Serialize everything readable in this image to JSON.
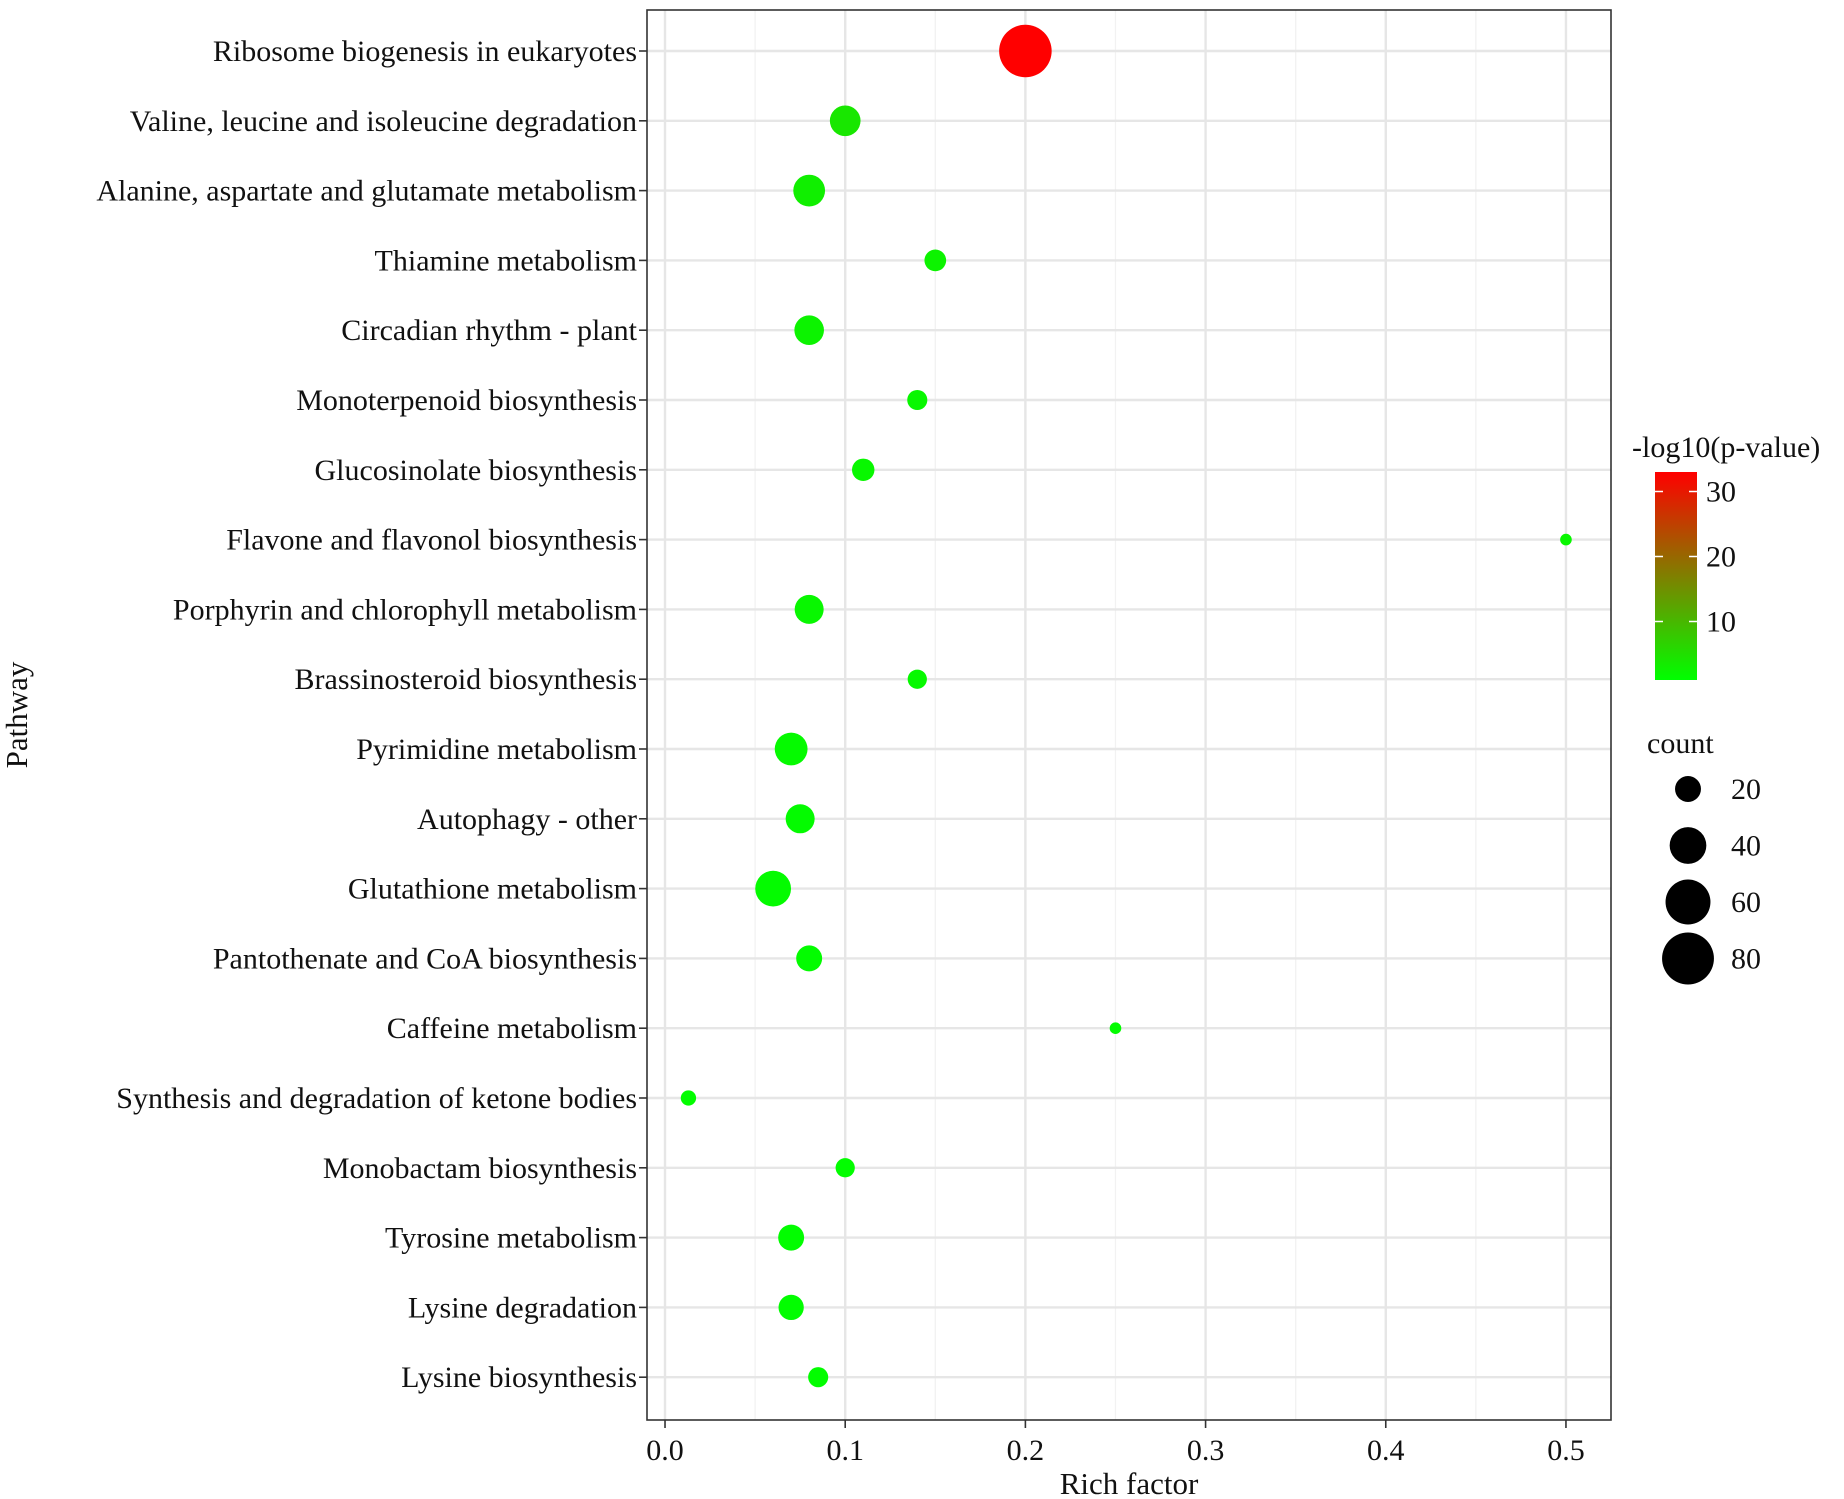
{
  "chart_data": {
    "type": "scatter",
    "xlabel": "Rich factor",
    "ylabel": "Pathway",
    "xlim": [
      -0.01,
      0.525
    ],
    "xticks": [
      "0.0",
      "0.1",
      "0.2",
      "0.3",
      "0.4",
      "0.5"
    ],
    "xtick_values": [
      0,
      0.1,
      0.2,
      0.3,
      0.4,
      0.5
    ],
    "grid": true,
    "legend_position": "right",
    "color_legend": {
      "title": "-log10(p-value)",
      "low_color": "#00ff00",
      "high_color": "#ff0000",
      "min": 1,
      "max": 33,
      "ticks": [
        "30",
        "20",
        "10"
      ],
      "tick_values": [
        30,
        20,
        10
      ]
    },
    "size_legend": {
      "title": "count",
      "labels": [
        "20",
        "40",
        "60",
        "80"
      ],
      "values": [
        20,
        40,
        60,
        80
      ]
    },
    "points": [
      {
        "pathway": "Ribosome biogenesis in eukaryotes",
        "rich_factor": 0.2,
        "count": 82,
        "neg_log10_p": 33
      },
      {
        "pathway": "Valine, leucine and isoleucine degradation",
        "rich_factor": 0.1,
        "count": 28,
        "neg_log10_p": 4
      },
      {
        "pathway": "Alanine, aspartate and glutamate metabolism",
        "rich_factor": 0.08,
        "count": 30,
        "neg_log10_p": 3
      },
      {
        "pathway": "Thiamine metabolism",
        "rich_factor": 0.15,
        "count": 14,
        "neg_log10_p": 2.5
      },
      {
        "pathway": "Circadian rhythm - plant",
        "rich_factor": 0.08,
        "count": 26,
        "neg_log10_p": 2.5
      },
      {
        "pathway": "Monoterpenoid biosynthesis",
        "rich_factor": 0.14,
        "count": 12,
        "neg_log10_p": 2
      },
      {
        "pathway": "Glucosinolate biosynthesis",
        "rich_factor": 0.11,
        "count": 15,
        "neg_log10_p": 2
      },
      {
        "pathway": "Flavone and flavonol biosynthesis",
        "rich_factor": 0.5,
        "count": 4,
        "neg_log10_p": 2
      },
      {
        "pathway": "Porphyrin and chlorophyll metabolism",
        "rich_factor": 0.08,
        "count": 25,
        "neg_log10_p": 2
      },
      {
        "pathway": "Brassinosteroid biosynthesis",
        "rich_factor": 0.14,
        "count": 11,
        "neg_log10_p": 1.8
      },
      {
        "pathway": "Pyrimidine metabolism",
        "rich_factor": 0.07,
        "count": 32,
        "neg_log10_p": 1.6
      },
      {
        "pathway": "Autophagy - other",
        "rich_factor": 0.075,
        "count": 25,
        "neg_log10_p": 1.5
      },
      {
        "pathway": "Glutathione metabolism",
        "rich_factor": 0.06,
        "count": 38,
        "neg_log10_p": 1.5
      },
      {
        "pathway": "Pantothenate and CoA biosynthesis",
        "rich_factor": 0.08,
        "count": 20,
        "neg_log10_p": 1.4
      },
      {
        "pathway": "Caffeine metabolism",
        "rich_factor": 0.25,
        "count": 4,
        "neg_log10_p": 1.4
      },
      {
        "pathway": "Synthesis and degradation of ketone bodies",
        "rich_factor": 0.013,
        "count": 7,
        "neg_log10_p": 1.3
      },
      {
        "pathway": "Monobactam biosynthesis",
        "rich_factor": 0.1,
        "count": 11,
        "neg_log10_p": 1.3
      },
      {
        "pathway": "Tyrosine metabolism",
        "rich_factor": 0.07,
        "count": 20,
        "neg_log10_p": 1.2
      },
      {
        "pathway": "Lysine degradation",
        "rich_factor": 0.07,
        "count": 19,
        "neg_log10_p": 1.2
      },
      {
        "pathway": "Lysine biosynthesis",
        "rich_factor": 0.085,
        "count": 12,
        "neg_log10_p": 1.2
      }
    ]
  }
}
